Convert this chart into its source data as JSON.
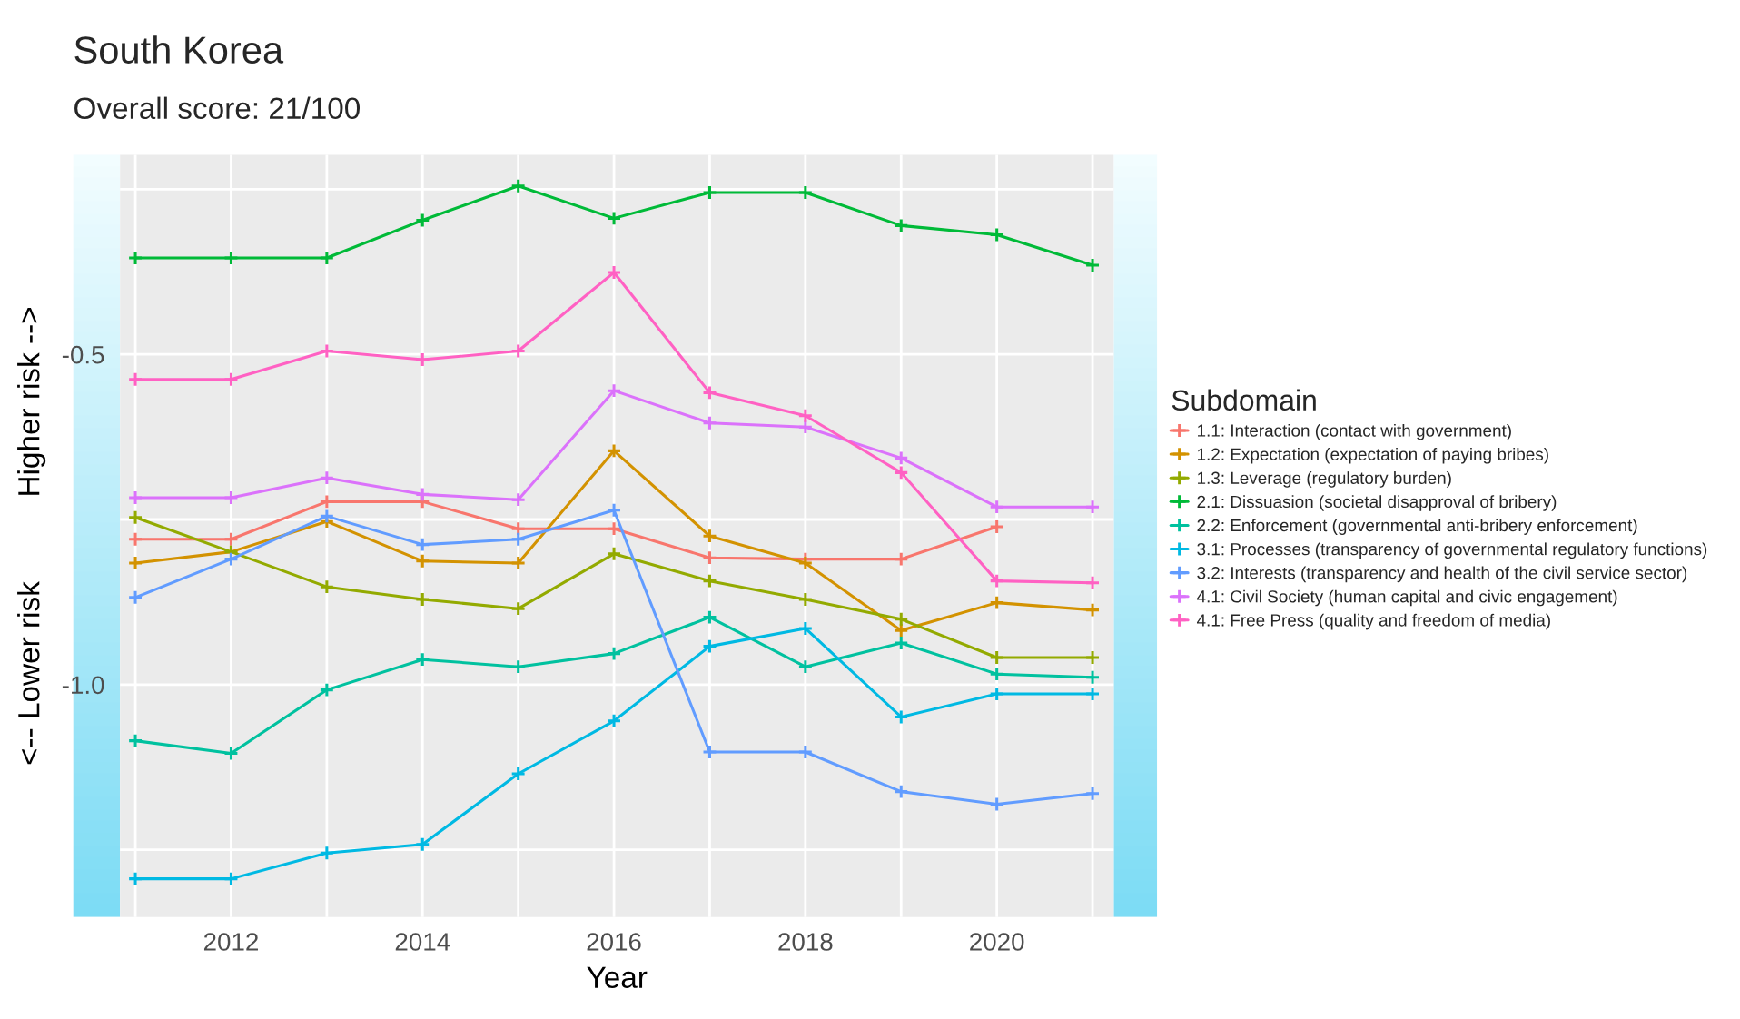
{
  "chart_data": {
    "type": "line",
    "title": "South Korea",
    "subtitle": "Overall score: 21/100",
    "xlabel": "Year",
    "ylabel": "<-- Lower risk          Higher risk -->",
    "legend_title": "Subdomain",
    "x": [
      2011,
      2012,
      2013,
      2014,
      2015,
      2016,
      2017,
      2018,
      2019,
      2020,
      2021
    ],
    "series": [
      {
        "name": "1.1: Interaction (contact with government)",
        "color": "#f8766d",
        "values": [
          -0.78,
          -0.78,
          -0.723,
          -0.723,
          -0.764,
          -0.764,
          -0.808,
          -0.81,
          -0.81,
          -0.761,
          null
        ]
      },
      {
        "name": "1.2: Expectation (expectation of paying bribes)",
        "color": "#d39200",
        "values": [
          -0.816,
          -0.799,
          -0.753,
          -0.813,
          -0.816,
          -0.646,
          -0.775,
          -0.816,
          -0.918,
          -0.876,
          -0.887
        ]
      },
      {
        "name": "1.3: Leverage (regulatory burden)",
        "color": "#93aa00",
        "values": [
          -0.747,
          -0.799,
          -0.852,
          -0.871,
          -0.885,
          -0.802,
          -0.843,
          -0.871,
          -0.901,
          -0.959,
          -0.959
        ]
      },
      {
        "name": "2.1: Dissuasion (societal disapproval of bribery)",
        "color": "#00ba38",
        "values": [
          -0.354,
          -0.354,
          -0.354,
          -0.297,
          -0.245,
          -0.294,
          -0.255,
          -0.255,
          -0.305,
          -0.319,
          -0.365
        ]
      },
      {
        "name": "2.2: Enforcement (governmental anti-bribery enforcement)",
        "color": "#00c19f",
        "values": [
          -1.085,
          -1.104,
          -1.008,
          -0.962,
          -0.973,
          -0.953,
          -0.898,
          -0.973,
          -0.937,
          -0.984,
          -0.989
        ]
      },
      {
        "name": "3.1: Processes (transparency of governmental regulatory functions)",
        "color": "#00b9e3",
        "values": [
          -1.294,
          -1.294,
          -1.255,
          -1.242,
          -1.135,
          -1.055,
          -0.942,
          -0.915,
          -1.049,
          -1.014,
          -1.014
        ]
      },
      {
        "name": "3.2: Interests (transparency and health of the civil service sector)",
        "color": "#619cff",
        "values": [
          -0.868,
          -0.81,
          -0.745,
          -0.788,
          -0.78,
          -0.736,
          -1.102,
          -1.102,
          -1.162,
          -1.181,
          -1.165
        ]
      },
      {
        "name": "4.1: Civil Society (human capital and civic engagement)",
        "color": "#db72fb",
        "values": [
          -0.717,
          -0.717,
          -0.687,
          -0.712,
          -0.72,
          -0.555,
          -0.604,
          -0.61,
          -0.657,
          -0.731,
          -0.731
        ]
      },
      {
        "name": "4.1: Free Press (quality and freedom of media)",
        "color": "#ff61c3",
        "values": [
          -0.538,
          -0.538,
          -0.495,
          -0.508,
          -0.495,
          -0.376,
          -0.558,
          -0.593,
          -0.679,
          -0.843,
          -0.846
        ]
      }
    ],
    "xlim": [
      2010.84,
      2021.22
    ],
    "ylim": [
      -1.352,
      -0.198
    ],
    "xticks": [
      {
        "value": 2011,
        "label": null
      },
      2012,
      {
        "value": 2013,
        "label": null
      },
      2014,
      {
        "value": 2015,
        "label": null
      },
      2016,
      {
        "value": 2017,
        "label": null
      },
      2018,
      {
        "value": 2019,
        "label": null
      },
      2020,
      {
        "value": 2021,
        "label": null
      }
    ],
    "yticks": [
      {
        "value": -1.25,
        "label": null
      },
      {
        "value": -1.0,
        "label": "-1.0"
      },
      {
        "value": -0.75,
        "label": null
      },
      {
        "value": -0.5,
        "label": "-0.5"
      },
      {
        "value": -0.25,
        "label": null
      }
    ],
    "grid": true,
    "legend": "right",
    "marker": "cross",
    "line_style": "solid"
  }
}
